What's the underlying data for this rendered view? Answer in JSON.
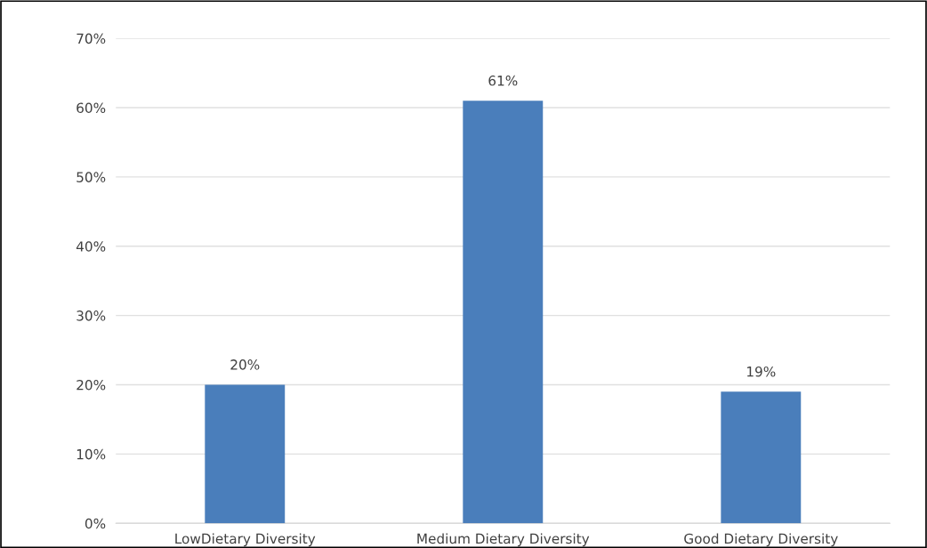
{
  "chart_data": {
    "type": "bar",
    "categories": [
      "LowDietary Diversity",
      "Medium Dietary Diversity",
      "Good Dietary Diversity"
    ],
    "values": [
      20,
      61,
      19
    ],
    "value_labels": [
      "20%",
      "61%",
      "19%"
    ],
    "color": "#4a7ebb",
    "ylim": [
      0,
      70
    ],
    "yticks": [
      {
        "value": 0,
        "label": "0%"
      },
      {
        "value": 10,
        "label": "10%"
      },
      {
        "value": 20,
        "label": "20%"
      },
      {
        "value": 30,
        "label": "30%"
      },
      {
        "value": 40,
        "label": "40%"
      },
      {
        "value": 50,
        "label": "50%"
      },
      {
        "value": 60,
        "label": "60%"
      },
      {
        "value": 70,
        "label": "70%"
      }
    ],
    "grid": "y",
    "legend": false
  }
}
